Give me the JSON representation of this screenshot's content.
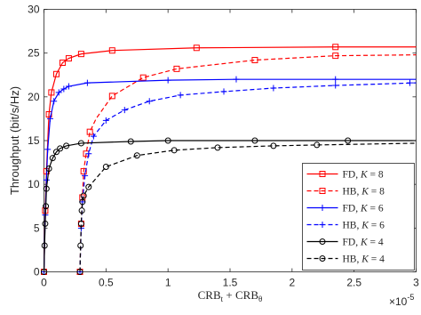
{
  "chart_data": {
    "type": "line",
    "title": "",
    "xlabel": "CRB_t + CRB_θ",
    "xlabel_parts": {
      "a": "CRB",
      "a_sub": "t",
      "plus": " + ",
      "b": "CRB",
      "b_sub": "θ"
    },
    "x_exponent": "×10",
    "x_exponent_power": "-5",
    "ylabel": "Throughput (bit/s/Hz)",
    "xlim": [
      0,
      3
    ],
    "ylim": [
      0,
      30
    ],
    "xticks": [
      0,
      0.5,
      1,
      1.5,
      2,
      2.5,
      3
    ],
    "xtick_labels": [
      "0",
      "0.5",
      "1",
      "1.5",
      "2",
      "2.5",
      "3"
    ],
    "yticks": [
      0,
      5,
      10,
      15,
      20,
      25,
      30
    ],
    "ytick_labels": [
      "0",
      "5",
      "10",
      "15",
      "20",
      "25",
      "30"
    ],
    "grid": false,
    "legend_position": "bottom-right",
    "series": [
      {
        "name": "FD, K = 8",
        "legend_prefix": "FD, ",
        "legend_k": "K",
        "legend_suffix": " = 8",
        "color": "#ff0000",
        "dash": "solid",
        "marker": "square",
        "x": [
          0.0,
          0.01,
          0.02,
          0.04,
          0.06,
          0.1,
          0.15,
          0.2,
          0.3,
          0.55,
          1.23,
          2.35,
          3.0
        ],
        "y": [
          0.0,
          7.0,
          11.5,
          18.0,
          20.5,
          22.6,
          23.9,
          24.4,
          24.9,
          25.3,
          25.6,
          25.7,
          25.7
        ],
        "marker_x": [
          0.0,
          0.01,
          0.02,
          0.04,
          0.06,
          0.1,
          0.15,
          0.2,
          0.3,
          0.55,
          1.23,
          2.35
        ],
        "marker_y": [
          0.0,
          7.0,
          11.5,
          18.0,
          20.5,
          22.6,
          23.9,
          24.4,
          24.9,
          25.3,
          25.6,
          25.7
        ]
      },
      {
        "name": "HB, K = 8",
        "legend_prefix": "HB, ",
        "legend_k": "K",
        "legend_suffix": " = 8",
        "color": "#ff0000",
        "dash": "dashed",
        "marker": "square",
        "x": [
          0.29,
          0.3,
          0.31,
          0.32,
          0.34,
          0.37,
          0.42,
          0.55,
          0.8,
          1.07,
          1.7,
          2.35,
          3.0
        ],
        "y": [
          0.0,
          5.5,
          8.5,
          11.5,
          13.5,
          16.0,
          17.5,
          20.1,
          22.2,
          23.2,
          24.2,
          24.7,
          24.8
        ],
        "marker_x": [
          0.29,
          0.3,
          0.31,
          0.32,
          0.34,
          0.37,
          0.55,
          0.8,
          1.07,
          1.7,
          2.35
        ],
        "marker_y": [
          0.0,
          5.5,
          8.5,
          11.5,
          13.5,
          16.0,
          20.1,
          22.2,
          23.2,
          24.2,
          24.7
        ]
      },
      {
        "name": "FD, K = 6",
        "legend_prefix": "FD, ",
        "legend_k": "K",
        "legend_suffix": " = 6",
        "color": "#0000ff",
        "dash": "solid",
        "marker": "plus",
        "x": [
          0.0,
          0.01,
          0.02,
          0.03,
          0.05,
          0.08,
          0.12,
          0.16,
          0.2,
          0.35,
          1.0,
          1.55,
          2.35,
          3.0
        ],
        "y": [
          0.0,
          6.5,
          10.5,
          14.0,
          17.5,
          19.5,
          20.5,
          20.9,
          21.2,
          21.6,
          21.9,
          22.0,
          22.0,
          22.0
        ],
        "marker_x": [
          0.0,
          0.01,
          0.02,
          0.03,
          0.05,
          0.08,
          0.12,
          0.16,
          0.2,
          0.35,
          1.0,
          1.55,
          2.35
        ],
        "marker_y": [
          0.0,
          6.5,
          10.5,
          14.0,
          17.5,
          19.5,
          20.5,
          20.9,
          21.2,
          21.6,
          21.9,
          22.0,
          22.0
        ]
      },
      {
        "name": "HB, K = 6",
        "legend_prefix": "HB, ",
        "legend_k": "K",
        "legend_suffix": " = 6",
        "color": "#0000ff",
        "dash": "dashed",
        "marker": "plus",
        "x": [
          0.29,
          0.3,
          0.31,
          0.33,
          0.36,
          0.4,
          0.5,
          0.65,
          0.85,
          1.1,
          1.45,
          1.85,
          2.35,
          3.0
        ],
        "y": [
          0.0,
          5.0,
          8.0,
          11.0,
          13.5,
          15.5,
          17.3,
          18.5,
          19.5,
          20.2,
          20.6,
          21.0,
          21.3,
          21.6
        ],
        "marker_x": [
          0.29,
          0.3,
          0.31,
          0.33,
          0.36,
          0.4,
          0.5,
          0.65,
          0.85,
          1.1,
          1.45,
          1.85,
          2.35,
          2.95
        ],
        "marker_y": [
          0.0,
          5.0,
          8.0,
          11.0,
          13.5,
          15.5,
          17.3,
          18.5,
          19.5,
          20.2,
          20.6,
          21.0,
          21.3,
          21.6
        ]
      },
      {
        "name": "FD, K = 4",
        "legend_prefix": "FD, ",
        "legend_k": "K",
        "legend_suffix": " = 4",
        "color": "#000000",
        "dash": "solid",
        "marker": "circle",
        "x": [
          0.0,
          0.005,
          0.01,
          0.015,
          0.02,
          0.04,
          0.07,
          0.1,
          0.13,
          0.18,
          0.3,
          0.7,
          1.0,
          1.7,
          2.45,
          3.0
        ],
        "y": [
          0.0,
          3.0,
          5.5,
          7.5,
          9.5,
          11.8,
          13.0,
          13.7,
          14.1,
          14.4,
          14.7,
          14.9,
          15.0,
          15.0,
          15.0,
          15.0
        ],
        "marker_x": [
          0.0,
          0.005,
          0.01,
          0.015,
          0.02,
          0.04,
          0.07,
          0.1,
          0.13,
          0.18,
          0.3,
          0.7,
          1.0,
          1.7,
          2.45
        ],
        "marker_y": [
          0.0,
          3.0,
          5.5,
          7.5,
          9.5,
          11.8,
          13.0,
          13.7,
          14.1,
          14.4,
          14.7,
          14.9,
          15.0,
          15.0,
          15.0
        ]
      },
      {
        "name": "HB, K = 4",
        "legend_prefix": "HB, ",
        "legend_k": "K",
        "legend_suffix": " = 4",
        "color": "#000000",
        "dash": "dashed",
        "marker": "circle",
        "x": [
          0.29,
          0.295,
          0.3,
          0.305,
          0.31,
          0.32,
          0.36,
          0.5,
          0.75,
          1.05,
          1.4,
          1.85,
          2.2,
          2.6,
          3.0
        ],
        "y": [
          0.0,
          3.0,
          5.5,
          7.0,
          8.0,
          8.7,
          9.7,
          12.0,
          13.3,
          13.9,
          14.2,
          14.4,
          14.5,
          14.6,
          14.7
        ],
        "marker_x": [
          0.29,
          0.295,
          0.3,
          0.305,
          0.31,
          0.32,
          0.36,
          0.5,
          0.75,
          1.05,
          1.4,
          1.85,
          2.2
        ],
        "marker_y": [
          0.0,
          3.0,
          5.5,
          7.0,
          8.0,
          8.7,
          9.7,
          12.0,
          13.3,
          13.9,
          14.2,
          14.4,
          14.5
        ]
      }
    ]
  }
}
